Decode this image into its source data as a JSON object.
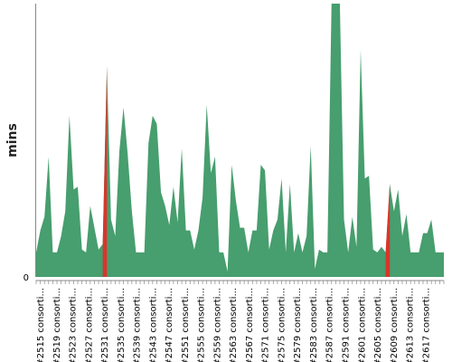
{
  "chart_data": {
    "type": "area",
    "title": "",
    "xlabel": "",
    "ylabel": "mins",
    "ytick_labels": [
      "0"
    ],
    "ylim": [
      0,
      100
    ],
    "grid": false,
    "legend": "none",
    "colors": {
      "fill": "#479e6e",
      "highlight": "#d9352a",
      "axis": "#888888"
    },
    "x_tick_labels": [
      "#2515 consorti...",
      "#2519 consorti...",
      "#2523 consorti...",
      "#2527 consorti...",
      "#2531 consorti...",
      "#2535 consorti...",
      "#2539 consorti...",
      "#2543 consorti...",
      "#2547 consorti...",
      "#2551 consorti...",
      "#2555 consorti...",
      "#2559 consorti...",
      "#2563 consorti...",
      "#2567 consorti...",
      "#2571 consorti...",
      "#2575 consorti...",
      "#2579 consorti...",
      "#2583 consorti...",
      "#2587 consorti...",
      "#2591 consorti...",
      "#2601 consorti...",
      "#2605 consorti...",
      "#2609 consorti...",
      "#2613 consorti...",
      "#2617 consorti..."
    ],
    "values": [
      9,
      17,
      22,
      44,
      9,
      9,
      15,
      24,
      59,
      32,
      33,
      10,
      9,
      26,
      18,
      10,
      12,
      77,
      21,
      15,
      46,
      62,
      45,
      24,
      9,
      9,
      9,
      49,
      59,
      56,
      31,
      26,
      19,
      33,
      20,
      47,
      17,
      17,
      10,
      17,
      29,
      63,
      38,
      44,
      9,
      9,
      2,
      41,
      28,
      18,
      18,
      9,
      17,
      17,
      41,
      39,
      10,
      17,
      21,
      36,
      9,
      34,
      9,
      16,
      9,
      15,
      48,
      3,
      10,
      9,
      9,
      100,
      100,
      100,
      21,
      9,
      22,
      11,
      83,
      36,
      37,
      10,
      9,
      11,
      9,
      34,
      24,
      32,
      15,
      23,
      9,
      9,
      9,
      16,
      16,
      21,
      9,
      9,
      9
    ],
    "highlight_indices": [
      16,
      84
    ]
  }
}
